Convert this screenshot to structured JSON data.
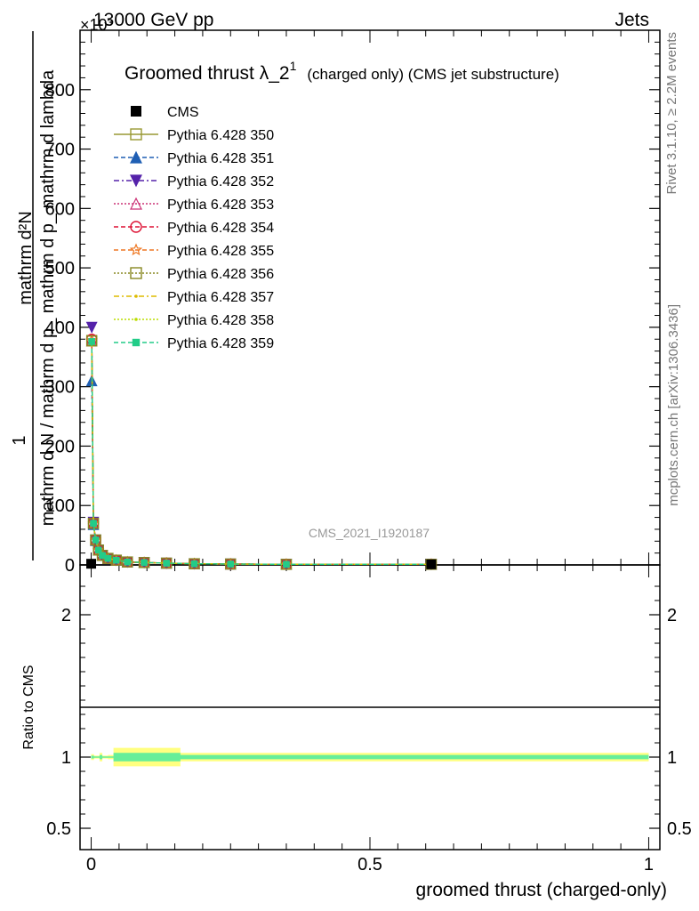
{
  "header": {
    "collision": "13000 GeV pp",
    "category": "Jets",
    "exponent": "×10³"
  },
  "title": {
    "main": "Groomed thrust λ_2",
    "superscript": "1",
    "suffix": "(charged only) (CMS jet substructure)"
  },
  "side_text": {
    "rivet": "Rivet 3.1.10, ≥ 2.2M events",
    "mcplots": "mcplots.cern.ch [arXiv:1306.3436]"
  },
  "watermark": "CMS_2021_I1920187",
  "ratio_ylabel": "Ratio to CMS",
  "chart_data": [
    {
      "type": "line",
      "panel": "main",
      "xlabel": "groomed thrust (charged-only)",
      "ylabel": {
        "numerator": "1",
        "denominator": "mathrm d N / mathrm d p_ mathrm d p_ mathrm d lambda",
        "side": "mathrm d²N"
      },
      "xlim": [
        -0.02,
        1.02
      ],
      "ylim": [
        0,
        900
      ],
      "y_scale_factor": "×10³",
      "yticks": [
        0,
        100,
        200,
        300,
        400,
        500,
        600,
        700,
        800
      ],
      "xticks": [
        0,
        0.5,
        1
      ],
      "xticklabels": [
        "0",
        "0.5",
        "1"
      ],
      "legend_position": "top-left",
      "series": [
        {
          "name": "CMS",
          "color": "#000000",
          "marker": "filled-square",
          "dash": "none",
          "x": [
            0.0,
            0.61
          ],
          "y": [
            2,
            1
          ]
        },
        {
          "name": "Pythia 6.428 350",
          "color": "#999933",
          "marker": "open-square",
          "dash": "solid",
          "x": [
            0.001,
            0.004,
            0.008,
            0.013,
            0.02,
            0.03,
            0.045,
            0.065,
            0.095,
            0.135,
            0.185,
            0.25,
            0.35,
            0.61
          ],
          "y": [
            378,
            70,
            42,
            25,
            16,
            11,
            8,
            5,
            4,
            3,
            2,
            1.5,
            1,
            1
          ]
        },
        {
          "name": "Pythia 6.428 351",
          "color": "#1f5fb4",
          "marker": "filled-triangle-up",
          "dash": "dashed",
          "x": [
            0.001,
            0.004,
            0.008,
            0.013,
            0.02,
            0.03,
            0.045,
            0.065,
            0.095,
            0.135,
            0.185,
            0.25,
            0.35,
            0.61
          ],
          "y": [
            310,
            68,
            41,
            25,
            16,
            11,
            8,
            5,
            4,
            3,
            2,
            1.5,
            1,
            1
          ]
        },
        {
          "name": "Pythia 6.428 352",
          "color": "#5522aa",
          "marker": "filled-triangle-down",
          "dash": "dashdot",
          "x": [
            0.001,
            0.004,
            0.008,
            0.013,
            0.02,
            0.03,
            0.045,
            0.065,
            0.095,
            0.135,
            0.185,
            0.25,
            0.35,
            0.61
          ],
          "y": [
            400,
            72,
            42,
            25,
            16,
            11,
            8,
            5,
            4,
            3,
            2,
            1.5,
            1,
            1
          ]
        },
        {
          "name": "Pythia 6.428 353",
          "color": "#cc3377",
          "marker": "open-triangle-up",
          "dash": "dotted",
          "x": [
            0.001,
            0.004,
            0.008,
            0.013,
            0.02,
            0.03,
            0.045,
            0.065,
            0.095,
            0.135,
            0.185,
            0.25,
            0.35,
            0.61
          ],
          "y": [
            377,
            70,
            42,
            25,
            16,
            11,
            8,
            5,
            4,
            3,
            2,
            1.5,
            1,
            1
          ]
        },
        {
          "name": "Pythia 6.428 354",
          "color": "#dd1133",
          "marker": "open-circle",
          "dash": "dashed",
          "x": [
            0.001,
            0.004,
            0.008,
            0.013,
            0.02,
            0.03,
            0.045,
            0.065,
            0.095,
            0.135,
            0.185,
            0.25,
            0.35,
            0.61
          ],
          "y": [
            380,
            70,
            42,
            25,
            16,
            11,
            8,
            5,
            4,
            3,
            2,
            1.5,
            1,
            1
          ]
        },
        {
          "name": "Pythia 6.428 355",
          "color": "#ee7722",
          "marker": "open-star",
          "dash": "dashed",
          "x": [
            0.001,
            0.004,
            0.008,
            0.013,
            0.02,
            0.03,
            0.045,
            0.065,
            0.095,
            0.135,
            0.185,
            0.25,
            0.35,
            0.61
          ],
          "y": [
            378,
            70,
            42,
            25,
            16,
            11,
            8,
            5,
            4,
            3,
            2,
            1.5,
            1,
            1
          ]
        },
        {
          "name": "Pythia 6.428 356",
          "color": "#888822",
          "marker": "open-square",
          "dash": "dotted",
          "x": [
            0.001,
            0.004,
            0.008,
            0.013,
            0.02,
            0.03,
            0.045,
            0.065,
            0.095,
            0.135,
            0.185,
            0.25,
            0.35,
            0.61
          ],
          "y": [
            377,
            70,
            42,
            25,
            16,
            11,
            8,
            5,
            4,
            3,
            2,
            1.5,
            1,
            1
          ]
        },
        {
          "name": "Pythia 6.428 357",
          "color": "#ddbb00",
          "marker": "small-dot",
          "dash": "dashdot",
          "x": [
            0.001,
            0.004,
            0.008,
            0.013,
            0.02,
            0.03,
            0.045,
            0.065,
            0.095,
            0.135,
            0.185,
            0.25,
            0.35,
            0.61
          ],
          "y": [
            377,
            70,
            42,
            25,
            16,
            11,
            8,
            5,
            4,
            3,
            2,
            1.5,
            1,
            1
          ]
        },
        {
          "name": "Pythia 6.428 358",
          "color": "#bbdd00",
          "marker": "small-dot",
          "dash": "dotted",
          "x": [
            0.001,
            0.004,
            0.008,
            0.013,
            0.02,
            0.03,
            0.045,
            0.065,
            0.095,
            0.135,
            0.185,
            0.25,
            0.35,
            0.61
          ],
          "y": [
            376,
            70,
            42,
            25,
            16,
            11,
            8,
            5,
            4,
            3,
            2,
            1.5,
            1,
            1
          ]
        },
        {
          "name": "Pythia 6.428 359",
          "color": "#22cc88",
          "marker": "filled-square-small",
          "dash": "dashed",
          "x": [
            0.001,
            0.004,
            0.008,
            0.013,
            0.02,
            0.03,
            0.045,
            0.065,
            0.095,
            0.135,
            0.185,
            0.25,
            0.35,
            0.61
          ],
          "y": [
            376,
            70,
            42,
            25,
            16,
            11,
            8,
            5,
            4,
            3,
            2,
            1.5,
            1,
            1
          ]
        }
      ]
    },
    {
      "type": "line",
      "panel": "ratio",
      "ylabel": "Ratio to CMS",
      "xlim": [
        -0.02,
        1.02
      ],
      "ylim": [
        0.35,
        2.35
      ],
      "yticks": [
        0.5,
        1,
        2
      ],
      "yticklabels": [
        "0.5",
        "1",
        "2"
      ],
      "reference": 1,
      "bands": [
        {
          "name": "outer",
          "color": "#ffff80",
          "x": [
            0.0,
            0.005,
            0.015,
            0.02,
            0.03,
            0.04,
            0.16,
            0.21,
            1.0
          ],
          "lo": [
            0.985,
            0.98,
            0.99,
            0.97,
            0.99,
            0.985,
            0.935,
            0.97,
            0.97
          ],
          "hi": [
            1.015,
            1.02,
            1.01,
            1.03,
            1.01,
            1.015,
            1.065,
            1.03,
            1.03
          ]
        },
        {
          "name": "inner",
          "color": "#66ee99",
          "x": [
            0.0,
            0.005,
            0.015,
            0.02,
            0.03,
            0.04,
            0.16,
            0.21,
            1.0
          ],
          "lo": [
            0.995,
            0.99,
            0.995,
            0.985,
            0.995,
            0.995,
            0.97,
            0.985,
            0.985
          ],
          "hi": [
            1.005,
            1.01,
            1.005,
            1.015,
            1.005,
            1.005,
            1.03,
            1.015,
            1.015
          ]
        }
      ]
    }
  ]
}
